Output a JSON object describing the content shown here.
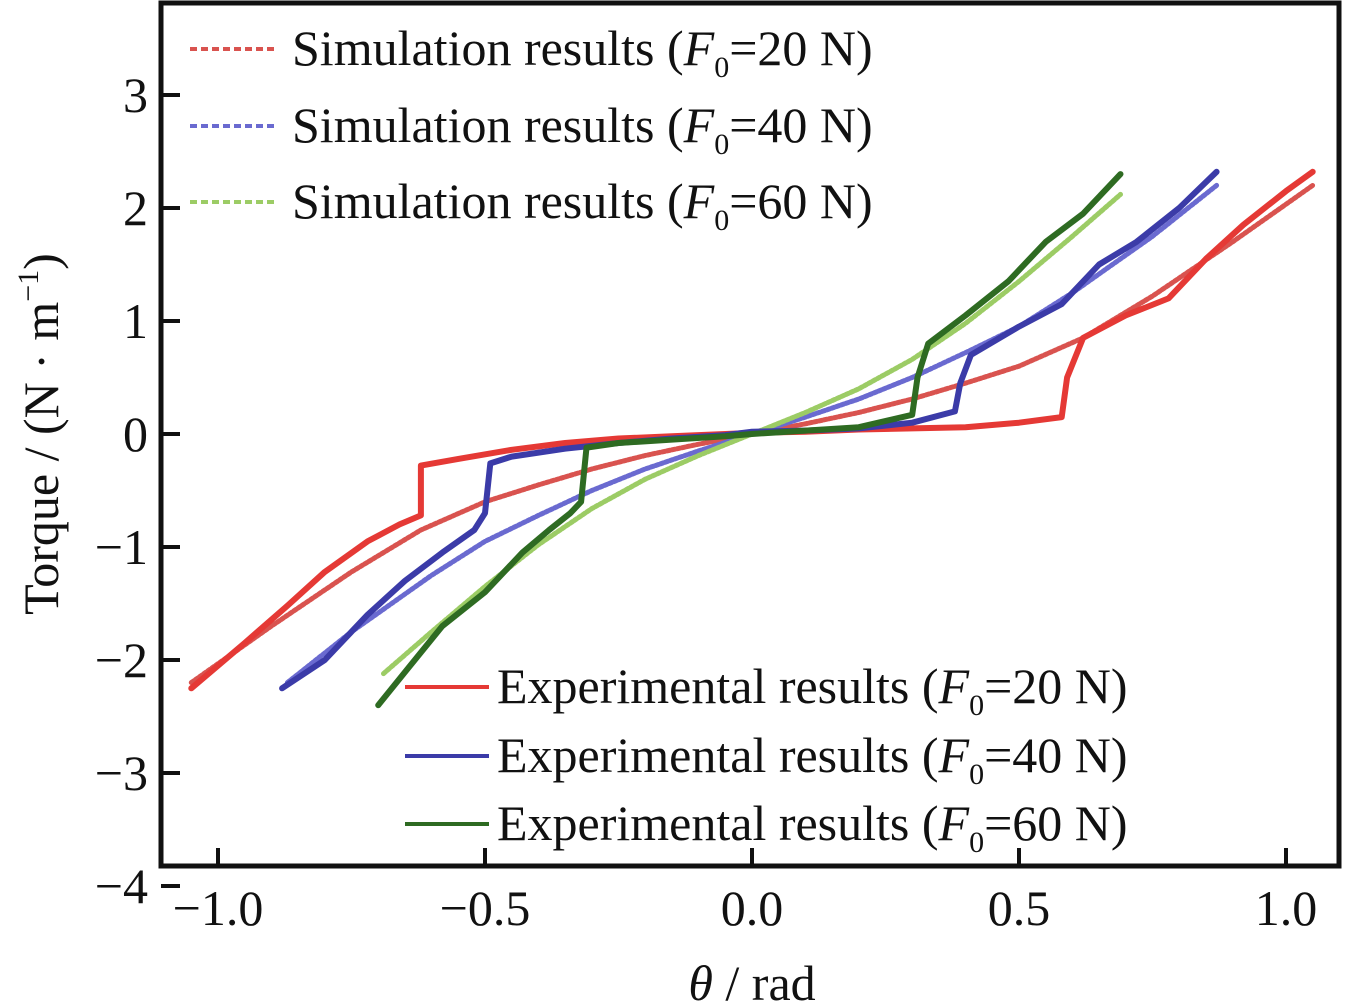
{
  "chart_data": {
    "type": "line",
    "title": "",
    "xlabel_symbol": "θ",
    "xlabel_unit": " / rad",
    "ylabel": "Torque / (N · m",
    "ylabel_sup": "−1",
    "ylabel_close": ")",
    "xlim": [
      -1.1,
      1.1
    ],
    "ylim": [
      -4,
      3.8
    ],
    "xticks": [
      -1.0,
      -0.5,
      0.0,
      0.5,
      1.0
    ],
    "xtick_labels": [
      "−1.0",
      "−0.5",
      "0.0",
      "0.5",
      "1.0"
    ],
    "yticks": [
      3,
      2,
      1,
      0,
      -1,
      -2,
      -3,
      -4
    ],
    "ytick_labels": [
      "3",
      "2",
      "1",
      "0",
      "−1",
      "−2",
      "−3",
      "−4"
    ],
    "grid": false,
    "legends": [
      {
        "placement": "top-left",
        "entries": [
          0,
          1,
          2
        ]
      },
      {
        "placement": "bottom-right",
        "entries": [
          3,
          4,
          5
        ]
      }
    ],
    "series": [
      {
        "name": "Simulation results (F0=20 N)",
        "label_prefix": "Simulation results (",
        "label_var": "F",
        "label_sub": "0",
        "label_suffix": "=20 N)",
        "style": "dotted",
        "color": "#d9534f",
        "x": [
          -1.05,
          -0.9,
          -0.75,
          -0.62,
          -0.5,
          -0.4,
          -0.3,
          -0.2,
          -0.1,
          0.0,
          0.1,
          0.2,
          0.3,
          0.4,
          0.5,
          0.62,
          0.75,
          0.9,
          1.05
        ],
        "y": [
          -2.2,
          -1.7,
          -1.22,
          -0.85,
          -0.6,
          -0.45,
          -0.31,
          -0.19,
          -0.09,
          0.0,
          0.09,
          0.19,
          0.31,
          0.45,
          0.6,
          0.85,
          1.22,
          1.7,
          2.2
        ]
      },
      {
        "name": "Simulation results (F0=40 N)",
        "label_prefix": "Simulation results (",
        "label_var": "F",
        "label_sub": "0",
        "label_suffix": "=40 N)",
        "style": "dotted",
        "color": "#6a6ad0",
        "x": [
          -0.87,
          -0.75,
          -0.6,
          -0.5,
          -0.4,
          -0.3,
          -0.2,
          -0.1,
          0.0,
          0.1,
          0.2,
          0.3,
          0.4,
          0.5,
          0.6,
          0.75,
          0.87
        ],
        "y": [
          -2.2,
          -1.75,
          -1.25,
          -0.95,
          -0.72,
          -0.5,
          -0.31,
          -0.15,
          0.0,
          0.15,
          0.31,
          0.5,
          0.72,
          0.95,
          1.25,
          1.75,
          2.2
        ]
      },
      {
        "name": "Simulation results (F0=60 N)",
        "label_prefix": "Simulation results (",
        "label_var": "F",
        "label_sub": "0",
        "label_suffix": "=60 N)",
        "style": "dotted",
        "color": "#9ccc65",
        "x": [
          -0.69,
          -0.6,
          -0.5,
          -0.4,
          -0.3,
          -0.2,
          -0.1,
          0.0,
          0.1,
          0.2,
          0.3,
          0.4,
          0.5,
          0.6,
          0.69
        ],
        "y": [
          -2.12,
          -1.75,
          -1.35,
          -0.98,
          -0.66,
          -0.4,
          -0.19,
          0.0,
          0.19,
          0.4,
          0.66,
          0.98,
          1.35,
          1.75,
          2.12
        ]
      },
      {
        "name": "Experimental results (F0=20 N)",
        "label_prefix": "Experimental results (",
        "label_var": "F",
        "label_sub": "0",
        "label_suffix": "=20 N)",
        "style": "solid",
        "color": "#e53935",
        "x": [
          -1.05,
          -0.95,
          -0.87,
          -0.8,
          -0.72,
          -0.66,
          -0.62,
          -0.62,
          -0.55,
          -0.45,
          -0.35,
          -0.25,
          -0.15,
          0.0,
          0.1,
          0.2,
          0.3,
          0.4,
          0.5,
          0.58,
          0.59,
          0.62,
          0.7,
          0.78,
          0.85,
          0.92,
          1.0,
          1.05
        ],
        "y": [
          -2.25,
          -1.85,
          -1.52,
          -1.22,
          -0.95,
          -0.8,
          -0.72,
          -0.28,
          -0.22,
          -0.14,
          -0.08,
          -0.04,
          -0.02,
          0.01,
          0.02,
          0.04,
          0.05,
          0.06,
          0.1,
          0.15,
          0.5,
          0.85,
          1.05,
          1.2,
          1.55,
          1.85,
          2.15,
          2.32
        ]
      },
      {
        "name": "Experimental results (F0=40 N)",
        "label_prefix": "Experimental results (",
        "label_var": "F",
        "label_sub": "0",
        "label_suffix": "=40 N)",
        "style": "solid",
        "color": "#3b3ba8",
        "x": [
          -0.88,
          -0.8,
          -0.72,
          -0.65,
          -0.58,
          -0.52,
          -0.5,
          -0.49,
          -0.45,
          -0.35,
          -0.25,
          -0.15,
          -0.05,
          0.0,
          0.1,
          0.2,
          0.3,
          0.38,
          0.39,
          0.41,
          0.5,
          0.58,
          0.65,
          0.72,
          0.8,
          0.87
        ],
        "y": [
          -2.25,
          -2.0,
          -1.6,
          -1.3,
          -1.05,
          -0.85,
          -0.7,
          -0.26,
          -0.2,
          -0.13,
          -0.08,
          -0.04,
          -0.01,
          0.02,
          0.03,
          0.05,
          0.1,
          0.2,
          0.45,
          0.7,
          0.95,
          1.15,
          1.5,
          1.7,
          2.0,
          2.32
        ]
      },
      {
        "name": "Experimental results (F0=60 N)",
        "label_prefix": "Experimental results (",
        "label_var": "F",
        "label_sub": "0",
        "label_suffix": "=60 N)",
        "style": "solid",
        "color": "#2e6b22",
        "x": [
          -0.7,
          -0.64,
          -0.58,
          -0.5,
          -0.43,
          -0.38,
          -0.34,
          -0.32,
          -0.31,
          -0.25,
          -0.15,
          -0.05,
          0.0,
          0.1,
          0.2,
          0.3,
          0.31,
          0.33,
          0.4,
          0.48,
          0.55,
          0.62,
          0.69
        ],
        "y": [
          -2.4,
          -2.05,
          -1.7,
          -1.4,
          -1.05,
          -0.85,
          -0.7,
          -0.6,
          -0.12,
          -0.08,
          -0.05,
          -0.02,
          0.0,
          0.03,
          0.06,
          0.17,
          0.5,
          0.8,
          1.05,
          1.35,
          1.7,
          1.95,
          2.3
        ]
      }
    ]
  }
}
